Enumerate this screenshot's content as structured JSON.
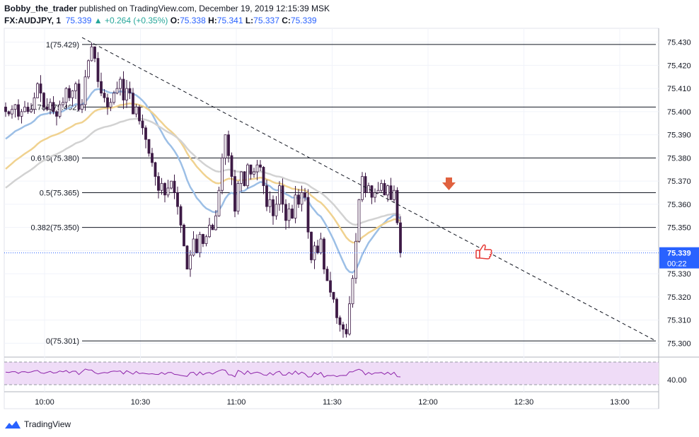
{
  "header": {
    "publisher": "Bobby_the_trader",
    "published_text": "published on TradingView.com, December 19, 2019 12:15:39 MSK",
    "symbol": "FX:AUDJPY, 1",
    "last": "75.339",
    "change": "+0.264 (+0.35%)",
    "o_label": "O:",
    "o": "75.338",
    "h_label": "H:",
    "h": "75.341",
    "l_label": "L:",
    "l": "75.337",
    "c_label": "C:",
    "c": "75.339"
  },
  "footer": {
    "brand": "TradingView"
  },
  "colors": {
    "up": "#26a69a",
    "candle_body": "#3d1a45",
    "ma_blue": "#9cbfe6",
    "ma_yellow": "#f0d290",
    "ma_gray": "#d2d2d2",
    "rsi_line": "#8e24aa",
    "rsi_band": "#efdcf7",
    "price_tag": "#2962ff",
    "arrow": "#e0613f"
  },
  "chart_data": {
    "type": "candlestick",
    "symbol": "FX:AUDJPY",
    "interval": "1",
    "y_ticks": [
      "75.430",
      "75.420",
      "75.410",
      "75.400",
      "75.390",
      "75.380",
      "75.370",
      "75.360",
      "75.350",
      "75.340",
      "75.330",
      "75.320",
      "75.310",
      "75.300"
    ],
    "x_ticks": [
      "10:00",
      "10:30",
      "11:00",
      "11:30",
      "12:00",
      "12:30",
      "13:00"
    ],
    "ylim": [
      75.294,
      75.436
    ],
    "current_price": "75.339",
    "countdown": "00:22",
    "fib_levels": [
      {
        "label": "1(75.429)",
        "value": 75.429
      },
      {
        "label": "0.786(75.402)",
        "value": 75.402
      },
      {
        "label": "0.618(75.380)",
        "value": 75.38
      },
      {
        "label": "0.5(75.365)",
        "value": 75.365
      },
      {
        "label": "0.382(75.350)",
        "value": 75.35
      },
      {
        "label": "0(75.301)",
        "value": 75.301
      }
    ],
    "trendline": {
      "from": [
        "09:51",
        75.432
      ],
      "to": [
        "13:11",
        75.301
      ]
    },
    "rsi": {
      "level_label": "40.00"
    },
    "closes": [
      75.4,
      75.399,
      75.401,
      75.403,
      75.398,
      75.4,
      75.402,
      75.4,
      75.401,
      75.406,
      75.412,
      75.408,
      75.402,
      75.401,
      75.404,
      75.4,
      75.398,
      75.403,
      75.404,
      75.41,
      75.406,
      75.409,
      75.412,
      75.401,
      75.403,
      75.415,
      75.422,
      75.428,
      75.423,
      75.413,
      75.408,
      75.406,
      75.402,
      75.404,
      75.408,
      75.41,
      75.414,
      75.405,
      75.41,
      75.408,
      75.399,
      75.402,
      75.396,
      75.393,
      75.388,
      75.382,
      75.378,
      75.372,
      75.366,
      75.369,
      75.364,
      75.367,
      75.37,
      75.365,
      75.359,
      75.351,
      75.342,
      75.332,
      75.338,
      75.345,
      75.339,
      75.347,
      75.343,
      75.346,
      75.351,
      75.349,
      75.355,
      75.366,
      75.38,
      75.39,
      75.381,
      75.372,
      75.357,
      75.369,
      75.374,
      75.368,
      75.377,
      75.373,
      75.374,
      75.377,
      75.376,
      75.368,
      75.359,
      75.362,
      75.355,
      75.36,
      75.368,
      75.36,
      75.353,
      75.358,
      75.354,
      75.364,
      75.36,
      75.365,
      75.363,
      75.348,
      75.336,
      75.342,
      75.339,
      75.345,
      75.332,
      75.327,
      75.322,
      75.319,
      75.311,
      75.308,
      75.306,
      75.304,
      75.317,
      75.328,
      75.344,
      75.362,
      75.372,
      75.365,
      75.368,
      75.363,
      75.365,
      75.366,
      75.369,
      75.364,
      75.368,
      75.362,
      75.366,
      75.352,
      75.339
    ]
  }
}
